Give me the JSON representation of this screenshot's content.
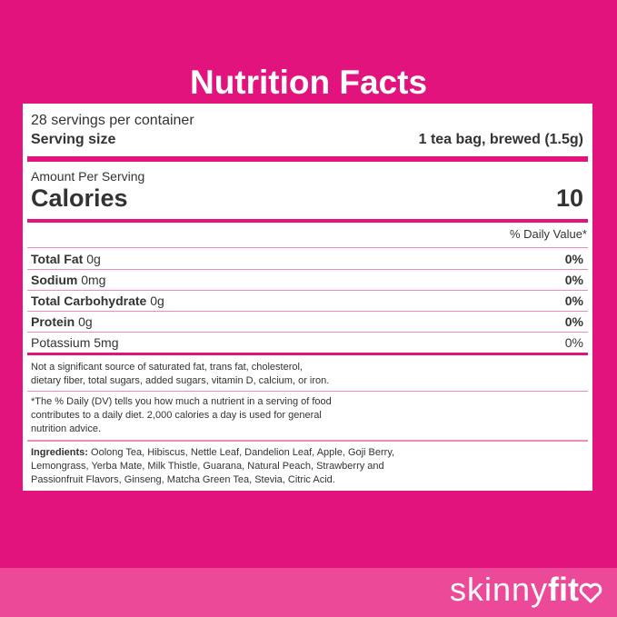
{
  "header": {
    "title": "Nutrition Facts"
  },
  "label": {
    "servings": "28 servings per container",
    "serving_size_label": "Serving size",
    "serving_size_value": "1 tea bag, brewed (1.5g)",
    "amount_per_serving": "Amount Per Serving",
    "calories_label": "Calories",
    "calories_value": "10",
    "daily_value_header": "% Daily Value*",
    "nutrients": [
      {
        "name": "Total Fat",
        "amount": "0g",
        "dv": "0%"
      },
      {
        "name": "Sodium",
        "amount": "0mg",
        "dv": "0%"
      },
      {
        "name": "Total Carbohydrate",
        "amount": "0g",
        "dv": "0%"
      },
      {
        "name": "Protein",
        "amount": "0g",
        "dv": "0%"
      },
      {
        "name": "Potassium",
        "amount": "5mg",
        "dv": "0%"
      }
    ],
    "note1_lines": [
      "Not a significant source of saturated fat, trans fat, cholesterol,",
      "dietary fiber, total sugars, added sugars, vitamin D, calcium, or iron."
    ],
    "note2_lines": [
      "*The % Daily (DV) tells you how much a nutrient in a serving of food",
      "contributes to a daily diet. 2,000 calories a day is used for general",
      "nutrition advice."
    ],
    "ingredients_label": "Ingredients:",
    "ingredients_lines": [
      "Oolong Tea, Hibiscus, Nettle Leaf, Dandelion Leaf, Apple, Goji Berry,",
      "Lemongrass, Yerba Mate, Milk Thistle, Guarana, Natural Peach, Strawberry and",
      "Passionfruit Flavors, Ginseng, Matcha Green Tea, Stevia, Citric Acid."
    ]
  },
  "brand": [
    "skinny",
    "fit"
  ]
}
